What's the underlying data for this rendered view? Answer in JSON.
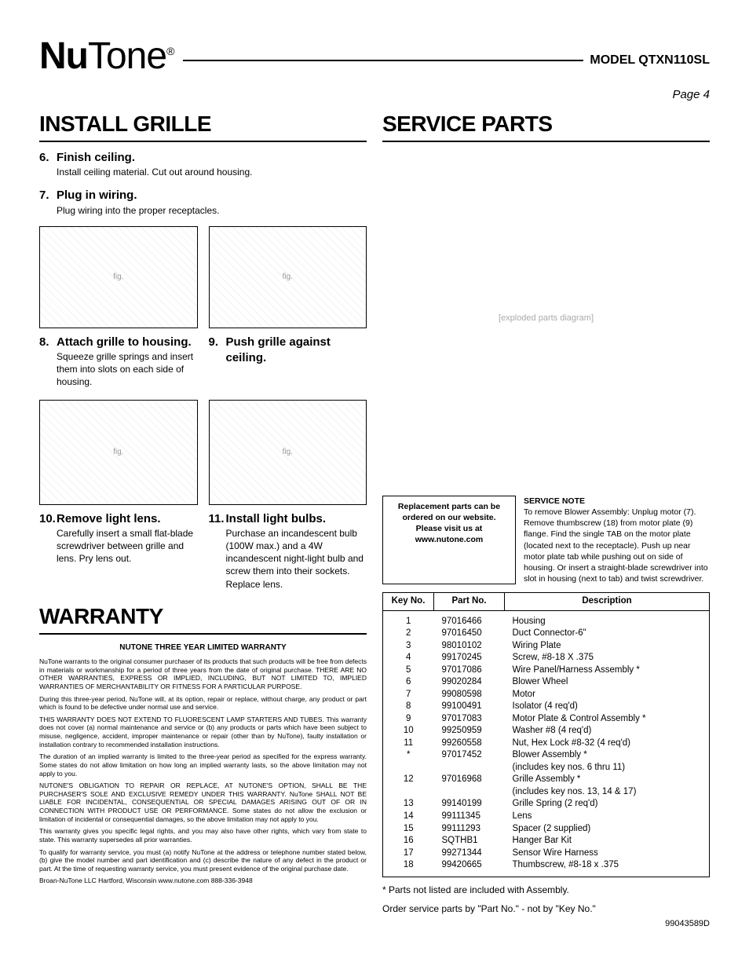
{
  "header": {
    "logo_nu": "Nu",
    "logo_tone": "Tone",
    "model": "MODEL QTXN110SL",
    "page": "Page 4"
  },
  "left": {
    "install_title": "INSTALL GRILLE",
    "steps": {
      "s6": {
        "n": "6.",
        "t": "Finish ceiling.",
        "b": "Install ceiling material. Cut out around housing."
      },
      "s7": {
        "n": "7.",
        "t": "Plug in wiring.",
        "b": "Plug wiring into the proper receptacles."
      },
      "s8": {
        "n": "8.",
        "t": "Attach grille to housing.",
        "b": "Squeeze grille springs and insert them into slots on each side of housing."
      },
      "s9": {
        "n": "9.",
        "t": "Push grille against ceiling."
      },
      "s10": {
        "n": "10.",
        "t": "Remove light lens.",
        "b": "Carefully insert a small flat-blade screwdriver between grille and lens. Pry lens out."
      },
      "s11": {
        "n": "11.",
        "t": "Install light bulbs.",
        "b": "Purchase an incandescent bulb (100W max.) and a 4W incandescent night-light bulb and screw them into their sockets. Replace lens."
      }
    },
    "warranty_title": "WARRANTY",
    "warranty_head": "NUTONE THREE YEAR LIMITED WARRANTY",
    "warranty": {
      "p1": "NuTone warrants to the original consumer purchaser of its products that such products will be free from defects in materials or workmanship for a period of three years from the date of original purchase. THERE ARE NO OTHER WARRANTIES, EXPRESS OR IMPLIED, INCLUDING, BUT NOT LIMITED TO, IMPLIED WARRANTIES OF MERCHANTABILITY OR FITNESS FOR A PARTICULAR PURPOSE.",
      "p2": "During this three-year period, NuTone will, at its option, repair or replace, without charge, any product or part which is found to be defective under normal use and service.",
      "p3": "THIS WARRANTY DOES NOT EXTEND TO FLUORESCENT LAMP STARTERS AND TUBES. This warranty does not cover (a) normal maintenance and service or (b) any products or parts which have been subject to misuse, negligence, accident, improper maintenance or repair (other than by NuTone), faulty installation or installation contrary to recommended installation instructions.",
      "p4": "The duration of an implied warranty is limited to the three-year period as specified for the express warranty. Some states do not allow limitation on how long an implied warranty lasts, so the above limitation may not apply to you.",
      "p5": "NUTONE'S OBLIGATION TO REPAIR OR REPLACE, AT NUTONE'S OPTION, SHALL BE THE PURCHASER'S SOLE AND EXCLUSIVE REMEDY UNDER THIS WARRANTY. NuTone SHALL NOT BE LIABLE FOR INCIDENTAL, CONSEQUENTIAL OR SPECIAL DAMAGES ARISING OUT OF OR IN CONNECTION WITH PRODUCT USE OR PERFORMANCE. Some states do not allow the exclusion or limitation of incidental or consequential damages, so the above limitation may not apply to you.",
      "p6": "This warranty gives you specific legal rights, and you may also have other rights, which vary from state to state. This warranty supersedes all prior warranties.",
      "p7": "To qualify for warranty service, you must (a) notify NuTone at the address or telephone number stated below, (b) give the model number and part identification and (c) describe the nature of any defect in the product or part. At the time of requesting warranty service, you must present evidence of the original purchase date.",
      "p8": "Broan-NuTone LLC    Hartford, Wisconsin    www.nutone.com    888-336-3948"
    }
  },
  "right": {
    "service_title": "SERVICE PARTS",
    "diagram_label": "[exploded parts diagram]",
    "order_box": "Replacement parts can be ordered on our website. Please visit us at www.nutone.com",
    "service_note_hd": "SERVICE NOTE",
    "service_note": "To remove Blower Assembly: Unplug motor (7). Remove thumbscrew (18) from motor plate (9) flange. Find the single TAB on the motor plate (located next to the receptacle). Push up near motor plate tab while pushing out on side of housing. Or insert a straight-blade screwdriver into slot in housing (next to tab) and twist screwdriver.",
    "table": {
      "cols": {
        "c1": "Key No.",
        "c2": "Part No.",
        "c3": "Description"
      },
      "rows": [
        {
          "k": "1",
          "p": "97016466",
          "d": "Housing"
        },
        {
          "k": "2",
          "p": "97016450",
          "d": "Duct Connector-6\""
        },
        {
          "k": "3",
          "p": "98010102",
          "d": "Wiring Plate"
        },
        {
          "k": "4",
          "p": "99170245",
          "d": "Screw, #8-18 X .375"
        },
        {
          "k": "5",
          "p": "97017086",
          "d": "Wire Panel/Harness Assembly *"
        },
        {
          "k": "6",
          "p": "99020284",
          "d": "Blower Wheel"
        },
        {
          "k": "7",
          "p": "99080598",
          "d": "Motor"
        },
        {
          "k": "8",
          "p": "99100491",
          "d": "Isolator (4 req'd)"
        },
        {
          "k": "9",
          "p": "97017083",
          "d": "Motor Plate & Control Assembly *"
        },
        {
          "k": "10",
          "p": "99250959",
          "d": "Washer #8 (4 req'd)"
        },
        {
          "k": "11",
          "p": "99260558",
          "d": "Nut, Hex Lock #8-32 (4 req'd)"
        },
        {
          "k": "*",
          "p": "97017452",
          "d": "Blower Assembly *"
        },
        {
          "k": "",
          "p": "",
          "d": "(includes key nos. 6 thru 11)"
        },
        {
          "k": "12",
          "p": "97016968",
          "d": "Grille Assembly *"
        },
        {
          "k": "",
          "p": "",
          "d": "(includes key nos. 13, 14 & 17)"
        },
        {
          "k": "13",
          "p": "99140199",
          "d": "Grille Spring (2 req'd)"
        },
        {
          "k": "14",
          "p": "99111345",
          "d": "Lens"
        },
        {
          "k": "15",
          "p": "99111293",
          "d": "Spacer (2 supplied)"
        },
        {
          "k": "16",
          "p": "SQTHB1",
          "d": "Hanger Bar Kit"
        },
        {
          "k": "17",
          "p": "99271344",
          "d": "Sensor Wire Harness"
        },
        {
          "k": "18",
          "p": "99420665",
          "d": "Thumbscrew, #8-18 x .375"
        }
      ]
    },
    "foot1": "* Parts not listed are included with Assembly.",
    "foot2": "Order service parts by \"Part No.\" - not by \"Key No.\"",
    "doc_num": "99043589D"
  }
}
